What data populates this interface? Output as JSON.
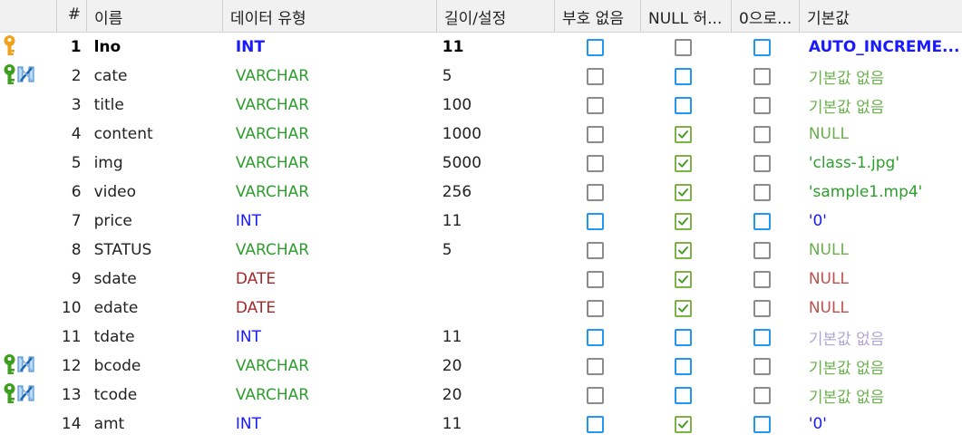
{
  "colors": {
    "type_int": "#1a1aff",
    "type_varchar": "#2e9e2e",
    "type_date": "#a52a2a",
    "default_blue": "#1a1aff",
    "default_green": "#6ab04c",
    "default_darkgreen": "#2e9e2e",
    "default_red": "#c0504d",
    "default_gray": "#b0a6d6"
  },
  "header": {
    "num": "#",
    "name": "이름",
    "type": "데이터 유형",
    "length": "길이/설정",
    "unsigned": "부호 없음",
    "allow_null": "NULL 허...",
    "zerofill": "0으로...",
    "default": "기본값"
  },
  "rows": [
    {
      "num": "1",
      "name": "lno",
      "type": "INT",
      "length": "11",
      "key": "primary",
      "unsigned": "blue",
      "allow_null": "gray",
      "zerofill": "blue",
      "null_checked": false,
      "default": "AUTO_INCREME...",
      "default_color": "blue",
      "bold": true
    },
    {
      "num": "2",
      "name": "cate",
      "type": "VARCHAR",
      "length": "5",
      "key": "foreign",
      "unsigned": "gray",
      "allow_null": "blue",
      "zerofill": "gray",
      "null_checked": false,
      "default": "기본값 없음",
      "default_color": "green"
    },
    {
      "num": "3",
      "name": "title",
      "type": "VARCHAR",
      "length": "100",
      "key": "",
      "unsigned": "gray",
      "allow_null": "blue",
      "zerofill": "gray",
      "null_checked": false,
      "default": "기본값 없음",
      "default_color": "green"
    },
    {
      "num": "4",
      "name": "content",
      "type": "VARCHAR",
      "length": "1000",
      "key": "",
      "unsigned": "gray",
      "allow_null": "green",
      "zerofill": "gray",
      "null_checked": true,
      "default": "NULL",
      "default_color": "green"
    },
    {
      "num": "5",
      "name": "img",
      "type": "VARCHAR",
      "length": "5000",
      "key": "",
      "unsigned": "gray",
      "allow_null": "green",
      "zerofill": "gray",
      "null_checked": true,
      "default": "'class-1.jpg'",
      "default_color": "darkgreen"
    },
    {
      "num": "6",
      "name": "video",
      "type": "VARCHAR",
      "length": "256",
      "key": "",
      "unsigned": "gray",
      "allow_null": "green",
      "zerofill": "gray",
      "null_checked": true,
      "default": "'sample1.mp4'",
      "default_color": "darkgreen"
    },
    {
      "num": "7",
      "name": "price",
      "type": "INT",
      "length": "11",
      "key": "",
      "unsigned": "blue",
      "allow_null": "green",
      "zerofill": "blue",
      "null_checked": true,
      "default": "'0'",
      "default_color": "blue"
    },
    {
      "num": "8",
      "name": "STATUS",
      "type": "VARCHAR",
      "length": "5",
      "key": "",
      "unsigned": "gray",
      "allow_null": "green",
      "zerofill": "gray",
      "null_checked": true,
      "default": "NULL",
      "default_color": "green"
    },
    {
      "num": "9",
      "name": "sdate",
      "type": "DATE",
      "length": "",
      "key": "",
      "unsigned": "gray",
      "allow_null": "green",
      "zerofill": "gray",
      "null_checked": true,
      "default": "NULL",
      "default_color": "red"
    },
    {
      "num": "10",
      "name": "edate",
      "type": "DATE",
      "length": "",
      "key": "",
      "unsigned": "gray",
      "allow_null": "green",
      "zerofill": "gray",
      "null_checked": true,
      "default": "NULL",
      "default_color": "red"
    },
    {
      "num": "11",
      "name": "tdate",
      "type": "INT",
      "length": "11",
      "key": "",
      "unsigned": "blue",
      "allow_null": "blue",
      "zerofill": "blue",
      "null_checked": false,
      "default": "기본값 없음",
      "default_color": "gray"
    },
    {
      "num": "12",
      "name": "bcode",
      "type": "VARCHAR",
      "length": "20",
      "key": "foreign",
      "unsigned": "gray",
      "allow_null": "blue",
      "zerofill": "gray",
      "null_checked": false,
      "default": "기본값 없음",
      "default_color": "green"
    },
    {
      "num": "13",
      "name": "tcode",
      "type": "VARCHAR",
      "length": "20",
      "key": "foreign",
      "unsigned": "gray",
      "allow_null": "blue",
      "zerofill": "gray",
      "null_checked": false,
      "default": "기본값 없음",
      "default_color": "green"
    },
    {
      "num": "14",
      "name": "amt",
      "type": "INT",
      "length": "11",
      "key": "",
      "unsigned": "blue",
      "allow_null": "green",
      "zerofill": "blue",
      "null_checked": true,
      "default": "'0'",
      "default_color": "blue"
    }
  ]
}
